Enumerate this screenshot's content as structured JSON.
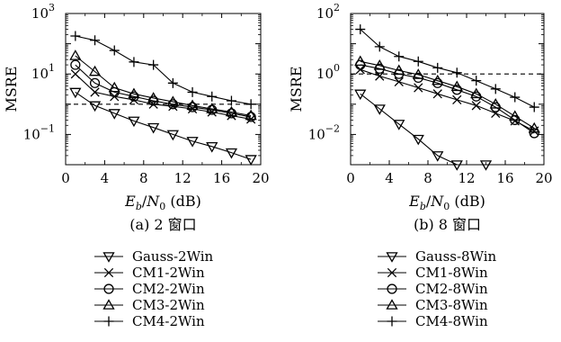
{
  "chart_data": [
    {
      "type": "line",
      "caption": "(a) 2 窗口",
      "ylabel": "MSRE",
      "xlabel": "E_b/N_0 (dB)",
      "xlabel_parts": {
        "e": "E",
        "b": "b",
        "slash": "/",
        "n": "N",
        "zero": "0",
        "unit": " (dB)"
      },
      "x_ticks": [
        "0",
        "4",
        "8",
        "12",
        "16",
        "20"
      ],
      "y_ticks": [
        {
          "base": "10",
          "exp": "3"
        },
        {
          "base": "10",
          "exp": "1"
        },
        {
          "base": "10",
          "exp": "−1"
        }
      ],
      "xlim": [
        0,
        20
      ],
      "ylim": [
        0.01,
        1000
      ],
      "y_scale": "log",
      "reference_line": {
        "style": "dashed",
        "y": 1
      },
      "legend_position": "below",
      "series": [
        {
          "name": "Gauss-2Win",
          "marker": "triangle-down",
          "x": [
            1,
            3,
            5,
            7,
            9,
            11,
            13,
            15,
            17,
            19
          ],
          "y": [
            2.5,
            0.9,
            0.5,
            0.28,
            0.17,
            0.1,
            0.06,
            0.04,
            0.025,
            0.015
          ]
        },
        {
          "name": "CM1-2Win",
          "marker": "x",
          "x": [
            1,
            3,
            5,
            7,
            9,
            11,
            13,
            15,
            17,
            19
          ],
          "y": [
            10,
            2.5,
            1.8,
            1.4,
            1.0,
            0.85,
            0.7,
            0.55,
            0.42,
            0.32
          ]
        },
        {
          "name": "CM2-2Win",
          "marker": "circle",
          "x": [
            1,
            3,
            5,
            7,
            9,
            11,
            13,
            15,
            17,
            19
          ],
          "y": [
            20,
            5,
            2.5,
            1.8,
            1.3,
            1.0,
            0.8,
            0.65,
            0.5,
            0.38
          ]
        },
        {
          "name": "CM3-2Win",
          "marker": "triangle-up",
          "x": [
            1,
            3,
            5,
            7,
            9,
            11,
            13,
            15,
            17,
            19
          ],
          "y": [
            40,
            12,
            3.5,
            2.2,
            1.6,
            1.2,
            0.9,
            0.7,
            0.55,
            0.42
          ]
        },
        {
          "name": "CM4-2Win",
          "marker": "plus",
          "x": [
            1,
            3,
            5,
            7,
            9,
            11,
            13,
            15,
            17,
            19
          ],
          "y": [
            180,
            130,
            60,
            25,
            20,
            5,
            2.5,
            1.8,
            1.3,
            1.0
          ]
        }
      ]
    },
    {
      "type": "line",
      "caption": "(b) 8 窗口",
      "ylabel": "MSRE",
      "xlabel": "E_b/N_0 (dB)",
      "xlabel_parts": {
        "e": "E",
        "b": "b",
        "slash": "/",
        "n": "N",
        "zero": "0",
        "unit": " (dB)"
      },
      "x_ticks": [
        "0",
        "4",
        "8",
        "12",
        "16",
        "20"
      ],
      "y_ticks": [
        {
          "base": "10",
          "exp": "2"
        },
        {
          "base": "10",
          "exp": "0"
        },
        {
          "base": "10",
          "exp": "−2"
        }
      ],
      "xlim": [
        0,
        20
      ],
      "ylim": [
        0.001,
        100
      ],
      "y_scale": "log",
      "reference_line": {
        "style": "dashed",
        "y": 1
      },
      "legend_position": "below",
      "series": [
        {
          "name": "Gauss-8Win",
          "marker": "triangle-down",
          "x": [
            1,
            3,
            5,
            7,
            9,
            11,
            14
          ],
          "y": [
            0.22,
            0.07,
            0.022,
            0.007,
            0.002,
            0.001,
            0.001
          ]
        },
        {
          "name": "CM1-8Win",
          "marker": "x",
          "x": [
            1,
            3,
            5,
            7,
            9,
            11,
            13,
            15,
            17,
            19
          ],
          "y": [
            1.4,
            0.85,
            0.55,
            0.35,
            0.22,
            0.14,
            0.09,
            0.05,
            0.028,
            0.013
          ]
        },
        {
          "name": "CM2-8Win",
          "marker": "circle",
          "x": [
            1,
            3,
            5,
            7,
            9,
            11,
            13,
            15,
            17,
            19
          ],
          "y": [
            2.0,
            1.5,
            1.0,
            0.75,
            0.5,
            0.3,
            0.18,
            0.08,
            0.03,
            0.011
          ]
        },
        {
          "name": "CM3-8Win",
          "marker": "triangle-up",
          "x": [
            1,
            3,
            5,
            7,
            9,
            11,
            13,
            15,
            17,
            19
          ],
          "y": [
            2.6,
            1.9,
            1.3,
            0.95,
            0.6,
            0.38,
            0.22,
            0.1,
            0.04,
            0.016
          ]
        },
        {
          "name": "CM4-8Win",
          "marker": "plus",
          "x": [
            1,
            3,
            5,
            7,
            9,
            11,
            13,
            15,
            17,
            19
          ],
          "y": [
            30,
            8,
            3.8,
            2.6,
            1.6,
            1.1,
            0.6,
            0.32,
            0.17,
            0.08
          ]
        }
      ]
    }
  ]
}
